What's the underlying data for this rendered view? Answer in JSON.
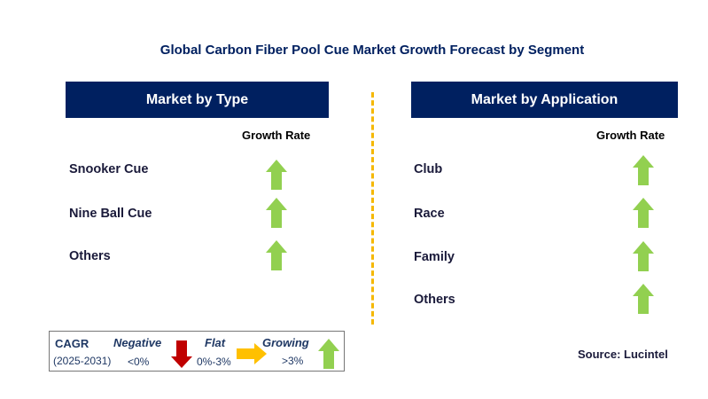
{
  "title": "Global Carbon Fiber Pool Cue Market Growth Forecast by Segment",
  "left_panel": {
    "header": "Market by Type",
    "column_label": "Growth Rate",
    "items": [
      {
        "label": "Snooker Cue",
        "trend": "growing"
      },
      {
        "label": "Nine Ball Cue",
        "trend": "growing"
      },
      {
        "label": "Others",
        "trend": "growing"
      }
    ]
  },
  "right_panel": {
    "header": "Market by Application",
    "column_label": "Growth Rate",
    "items": [
      {
        "label": "Club",
        "trend": "growing"
      },
      {
        "label": "Race",
        "trend": "growing"
      },
      {
        "label": "Family",
        "trend": "growing"
      },
      {
        "label": "Others",
        "trend": "growing"
      }
    ]
  },
  "legend": {
    "cagr": "CAGR",
    "period": "(2025-2031)",
    "negative": {
      "label": "Negative",
      "range": "<0%",
      "color": "#c00000"
    },
    "flat": {
      "label": "Flat",
      "range": "0%-3%",
      "color": "#ffc000"
    },
    "growing": {
      "label": "Growing",
      "range": ">3%",
      "color": "#92d050"
    }
  },
  "source": "Source: Lucintel"
}
